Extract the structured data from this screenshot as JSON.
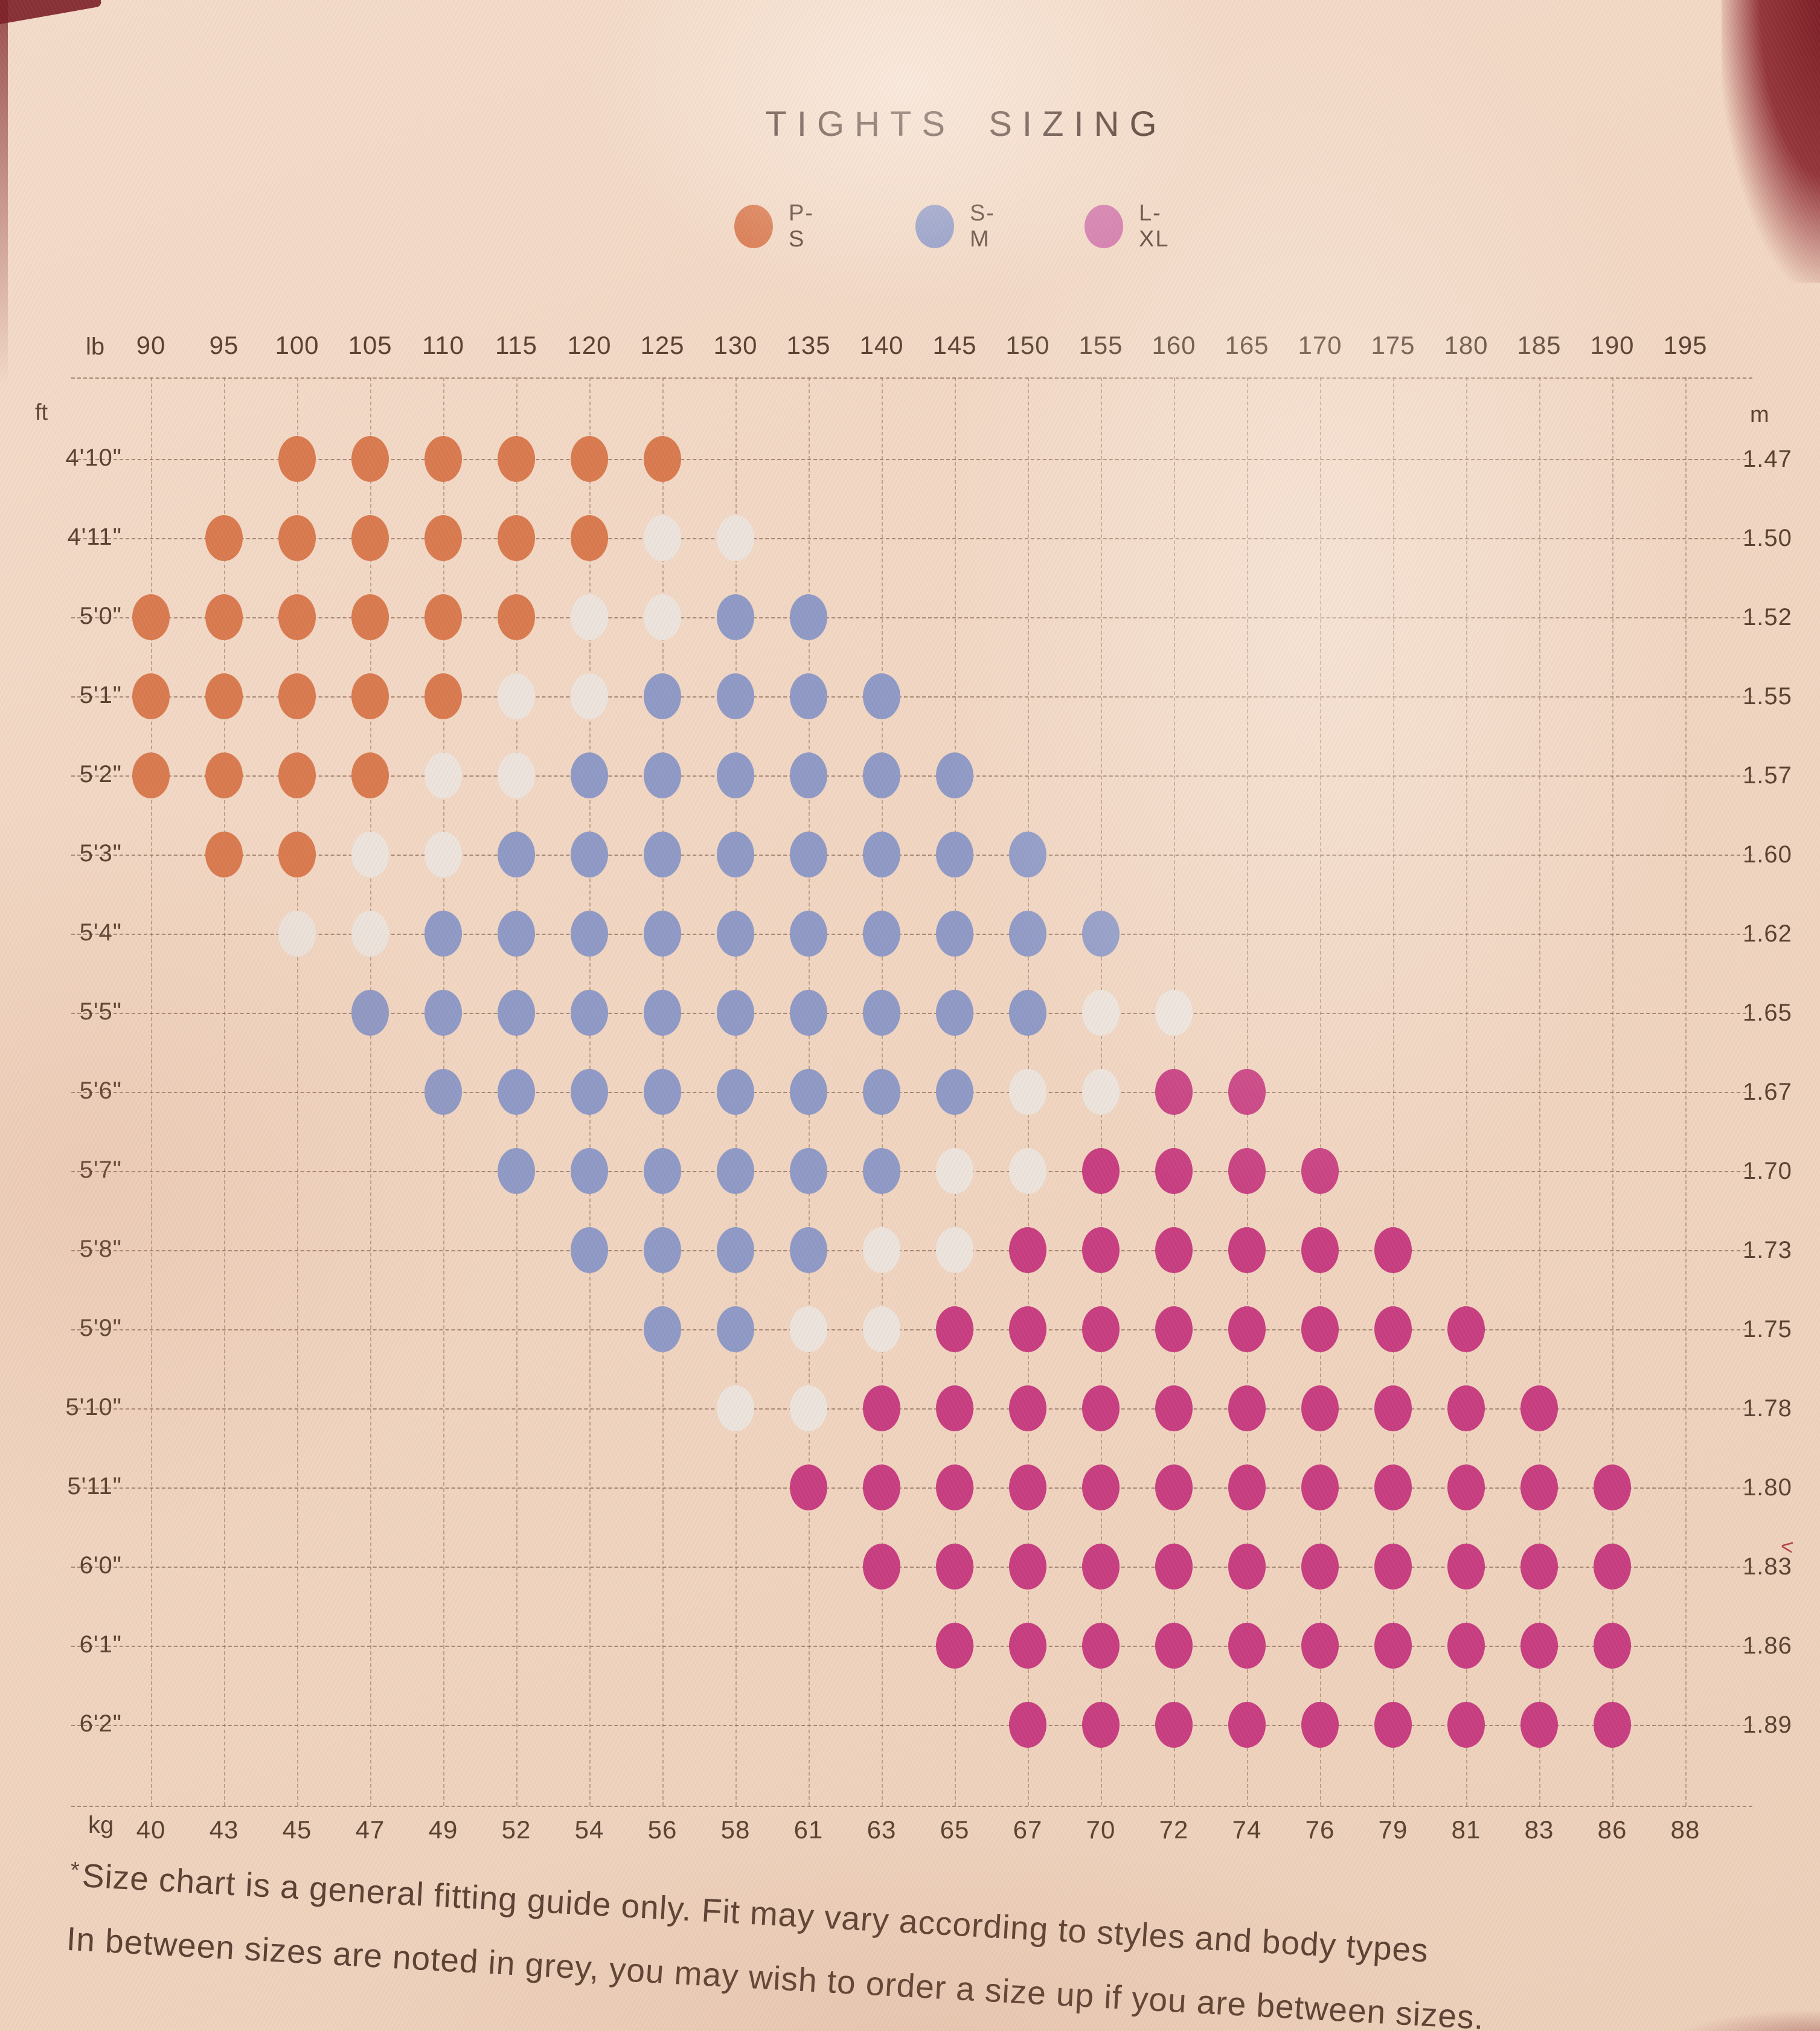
{
  "title": "TIGHTS SIZING",
  "legend": {
    "items": [
      {
        "label": "P-S",
        "code": "PS"
      },
      {
        "label": "S-M",
        "code": "SM"
      },
      {
        "label": "L-XL",
        "code": "LXL"
      }
    ]
  },
  "colors": {
    "ps": "#d9794e",
    "sm": "#8e99c6",
    "lxl": "#c73c80",
    "lxl_legend": "#d277ab",
    "between": "#ece4dd",
    "grid": "#8a6a55",
    "text": "#54392c",
    "background": "#f1d6c2",
    "edge": "#7a1c23"
  },
  "chart_data": {
    "type": "heatmap",
    "title": "TIGHTS SIZING",
    "legend_entries": [
      "P-S",
      "S-M",
      "L-XL"
    ],
    "units": {
      "top": "lb",
      "bottom": "kg",
      "left": "ft",
      "right": "m"
    },
    "columns_lb": [
      90,
      95,
      100,
      105,
      110,
      115,
      120,
      125,
      130,
      135,
      140,
      145,
      150,
      155,
      160,
      165,
      170,
      175,
      180,
      185,
      190,
      195
    ],
    "columns_kg": [
      40,
      43,
      45,
      47,
      49,
      52,
      54,
      56,
      58,
      61,
      63,
      65,
      67,
      70,
      72,
      74,
      76,
      79,
      81,
      83,
      86,
      88
    ],
    "rows_ft": [
      "4'10\"",
      "4'11\"",
      "5'0\"",
      "5'1\"",
      "5'2\"",
      "5'3\"",
      "5'4\"",
      "5'5\"",
      "5'6\"",
      "5'7\"",
      "5'8\"",
      "5'9\"",
      "5'10\"",
      "5'11\"",
      "6'0\"",
      "6'1\"",
      "6'2\""
    ],
    "rows_m": [
      "1.47",
      "1.50",
      "1.52",
      "1.55",
      "1.57",
      "1.60",
      "1.62",
      "1.65",
      "1.67",
      "1.70",
      "1.73",
      "1.75",
      "1.78",
      "1.80",
      "1.83",
      "1.86",
      "1.89"
    ],
    "cell_legend": {
      "O": "P-S",
      "B": "S-M",
      "M": "L-XL",
      "G": "in-between size",
      ".": "none"
    },
    "matrix": [
      "..OOOOOO..............",
      ".OOOOOOGG.............",
      "OOOOOOGGBB............",
      "OOOOOGGBBBB...........",
      "OOOOGGBBBBBB..........",
      ".OOGGBBBBBBBB.........",
      "..GGBBBBBBBBBB........",
      "...BBBBBBBBBBGG.......",
      "....BBBBBBBBGGMM......",
      ".....BBBBBBGGMMMM.....",
      "......BBBBGGMMMMMM....",
      ".......BBGGMMMMMMMM...",
      "........GGMMMMMMMMMM..",
      ".........MMMMMMMMMMMM.",
      "..........MMMMMMMMMMM.",
      "...........MMMMMMMMMM.",
      "............MMMMMMMMM."
    ],
    "grid": "dashed",
    "x_range_lb": [
      90,
      195
    ],
    "x_step_lb": 5
  },
  "footnote": {
    "star": "*",
    "line1": "Size chart is a general fitting guide only. Fit may vary according to styles and body types",
    "line2": "In between sizes are noted in grey, you may wish to order a size up if you are between sizes."
  }
}
